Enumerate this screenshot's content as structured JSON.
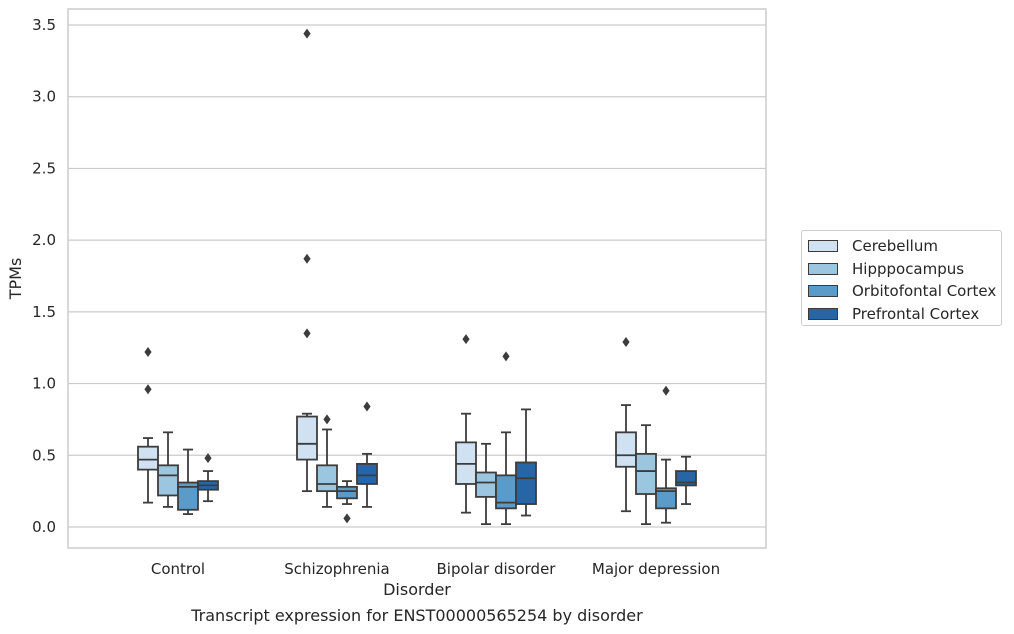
{
  "chart_data": {
    "type": "box",
    "xlabel": "Disorder",
    "ylabel": "TPMs",
    "caption": "Transcript expression for ENST00000565254 by disorder",
    "ylim": [
      -0.14,
      3.62
    ],
    "yticks": [
      "0.0",
      "0.5",
      "1.0",
      "1.5",
      "2.0",
      "2.5",
      "3.0",
      "3.5"
    ],
    "ytick_values": [
      0,
      0.5,
      1.0,
      1.5,
      2.0,
      2.5,
      3.0,
      3.5
    ],
    "grid": "horizontal",
    "legend_placement": "right",
    "categories": [
      "Control",
      "Schizophrenia",
      "Bipolar disorder",
      "Major depression"
    ],
    "series": [
      {
        "name": "Cerebellum",
        "color": "#d0e2f2",
        "boxes": [
          {
            "whisker_low": 0.17,
            "q1": 0.4,
            "median": 0.47,
            "q3": 0.56,
            "whisker_high": 0.62,
            "outliers": [
              0.96,
              1.22
            ]
          },
          {
            "whisker_low": 0.25,
            "q1": 0.47,
            "median": 0.58,
            "q3": 0.77,
            "whisker_high": 0.79,
            "outliers": [
              1.35,
              1.87,
              3.44
            ]
          },
          {
            "whisker_low": 0.1,
            "q1": 0.3,
            "median": 0.44,
            "q3": 0.59,
            "whisker_high": 0.79,
            "outliers": [
              1.31
            ]
          },
          {
            "whisker_low": 0.11,
            "q1": 0.42,
            "median": 0.5,
            "q3": 0.66,
            "whisker_high": 0.85,
            "outliers": [
              1.29
            ]
          }
        ]
      },
      {
        "name": "Hipppocampus",
        "color": "#9cc6e0",
        "boxes": [
          {
            "whisker_low": 0.14,
            "q1": 0.22,
            "median": 0.36,
            "q3": 0.43,
            "whisker_high": 0.66,
            "outliers": []
          },
          {
            "whisker_low": 0.14,
            "q1": 0.25,
            "median": 0.3,
            "q3": 0.43,
            "whisker_high": 0.68,
            "outliers": [
              0.75
            ]
          },
          {
            "whisker_low": 0.02,
            "q1": 0.21,
            "median": 0.31,
            "q3": 0.38,
            "whisker_high": 0.58,
            "outliers": []
          },
          {
            "whisker_low": 0.02,
            "q1": 0.23,
            "median": 0.39,
            "q3": 0.51,
            "whisker_high": 0.71,
            "outliers": []
          }
        ]
      },
      {
        "name": "Orbitofontal Cortex",
        "color": "#5a9bc9",
        "boxes": [
          {
            "whisker_low": 0.09,
            "q1": 0.12,
            "median": 0.28,
            "q3": 0.31,
            "whisker_high": 0.54,
            "outliers": []
          },
          {
            "whisker_low": 0.16,
            "q1": 0.2,
            "median": 0.25,
            "q3": 0.28,
            "whisker_high": 0.32,
            "outliers": [
              0.06
            ]
          },
          {
            "whisker_low": 0.02,
            "q1": 0.13,
            "median": 0.17,
            "q3": 0.36,
            "whisker_high": 0.66,
            "outliers": [
              1.19
            ]
          },
          {
            "whisker_low": 0.03,
            "q1": 0.13,
            "median": 0.25,
            "q3": 0.27,
            "whisker_high": 0.47,
            "outliers": [
              0.95
            ]
          }
        ]
      },
      {
        "name": "Prefrontal Cortex",
        "color": "#2666a7",
        "boxes": [
          {
            "whisker_low": 0.18,
            "q1": 0.26,
            "median": 0.29,
            "q3": 0.32,
            "whisker_high": 0.39,
            "outliers": [
              0.48
            ]
          },
          {
            "whisker_low": 0.14,
            "q1": 0.3,
            "median": 0.36,
            "q3": 0.44,
            "whisker_high": 0.51,
            "outliers": [
              0.84
            ]
          },
          {
            "whisker_low": 0.08,
            "q1": 0.16,
            "median": 0.34,
            "q3": 0.45,
            "whisker_high": 0.82,
            "outliers": []
          },
          {
            "whisker_low": 0.16,
            "q1": 0.29,
            "median": 0.31,
            "q3": 0.39,
            "whisker_high": 0.49,
            "outliers": []
          }
        ]
      }
    ]
  }
}
